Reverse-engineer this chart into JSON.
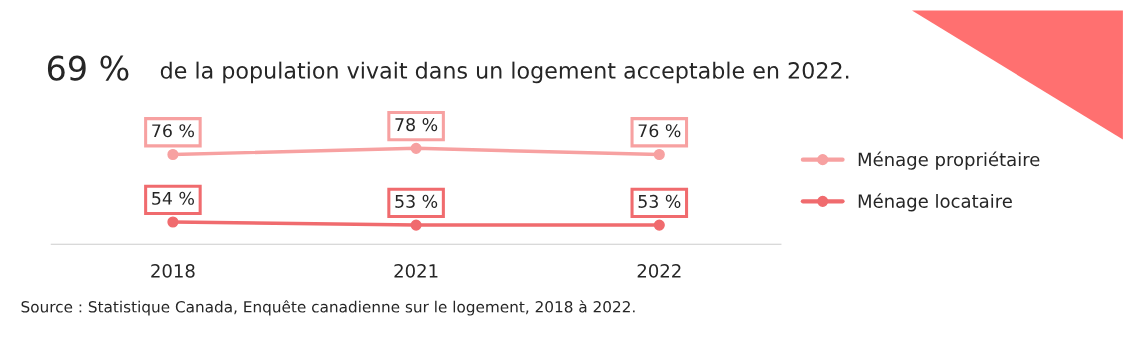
{
  "chart_data": {
    "type": "line",
    "title": "69 %",
    "subtitle": "de la population vivait dans un logement acceptable en 2022.",
    "categories": [
      "2018",
      "2021",
      "2022"
    ],
    "series": [
      {
        "name": "Ménage propriétaire",
        "color": "#f7a1a1",
        "values": [
          76,
          78,
          76
        ],
        "value_labels": [
          "76 %",
          "78 %",
          "76 %"
        ]
      },
      {
        "name": "Ménage locataire",
        "color": "#f06b6e",
        "values": [
          54,
          53,
          53
        ],
        "value_labels": [
          "54 %",
          "53 %",
          "53 %"
        ]
      }
    ],
    "tick_labels": "x",
    "legend": "right",
    "marker": "circle",
    "line_style": "solid",
    "grid": false,
    "annotations": [
      "Source : Statistique Canada, Enquête canadienne sur le logement, 2018 à 2022."
    ]
  }
}
